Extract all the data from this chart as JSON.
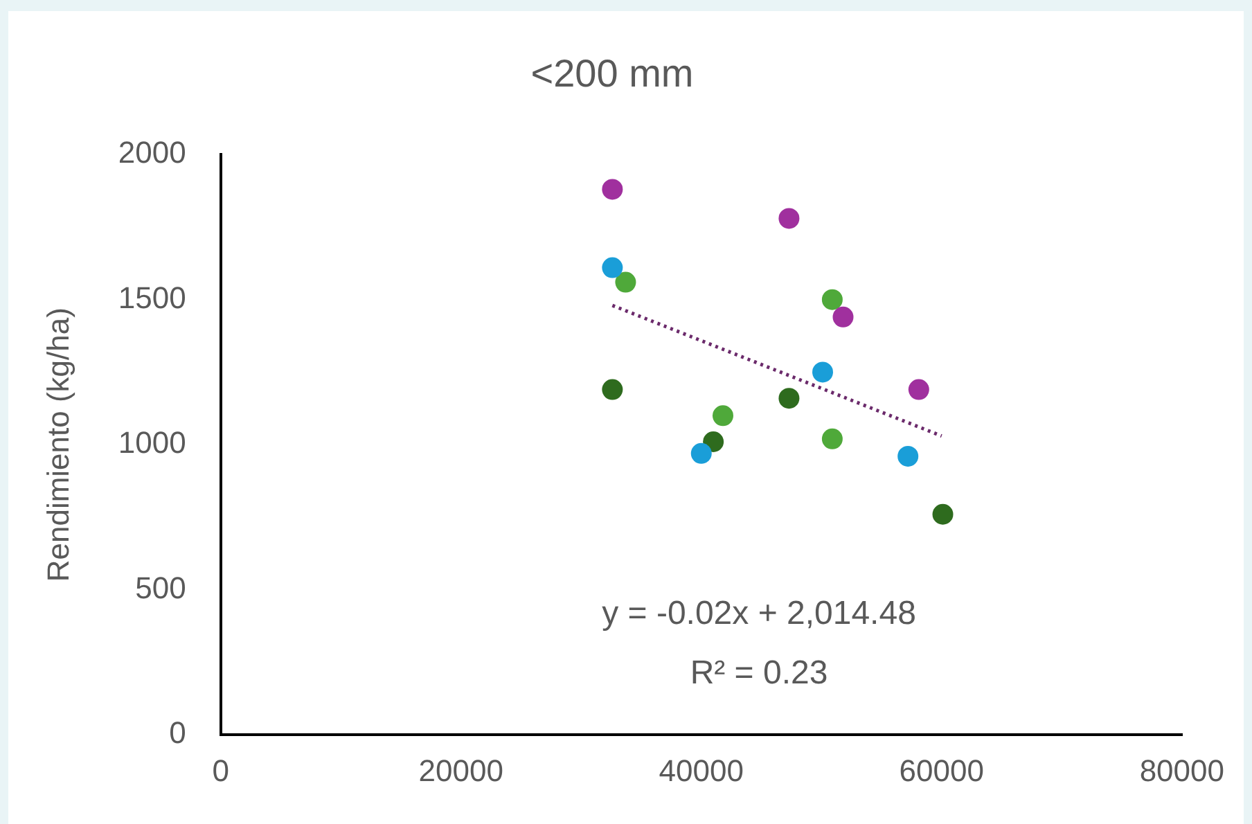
{
  "chart_data": {
    "type": "scatter",
    "title": "<200 mm",
    "ylabel": "Rendimiento (kg/ha)",
    "xlim": [
      0,
      80000
    ],
    "xticks": [
      0,
      20000,
      40000,
      60000,
      80000
    ],
    "ylim": [
      0,
      2000
    ],
    "yticks": [
      0,
      500,
      1000,
      1500,
      2000
    ],
    "grid": false,
    "legend": false,
    "marker": "circle",
    "series": [
      {
        "color": "#a0309e",
        "x": [
          32600,
          47300,
          51800,
          58100
        ],
        "values": [
          1880,
          1780,
          1440,
          1190
        ]
      },
      {
        "color": "#1a9ed8",
        "x": [
          32600,
          40000,
          50100,
          57200
        ],
        "values": [
          1610,
          970,
          1250,
          960
        ]
      },
      {
        "color": "#4fa93a",
        "x": [
          33700,
          41800,
          50900,
          50900
        ],
        "values": [
          1560,
          1100,
          1500,
          1020
        ]
      },
      {
        "color": "#2e6b1e",
        "x": [
          32600,
          41000,
          47300,
          60100
        ],
        "values": [
          1190,
          1010,
          1160,
          760
        ]
      },
      {
        "type": "line",
        "color": "#6b2a6b",
        "line_style": "dotted",
        "marker": "none",
        "x": [
          32600,
          60000
        ],
        "values": [
          1480,
          1030
        ]
      }
    ],
    "annotations": [
      "y = -0.02x + 2,014.48",
      "R² = 0.23"
    ]
  }
}
